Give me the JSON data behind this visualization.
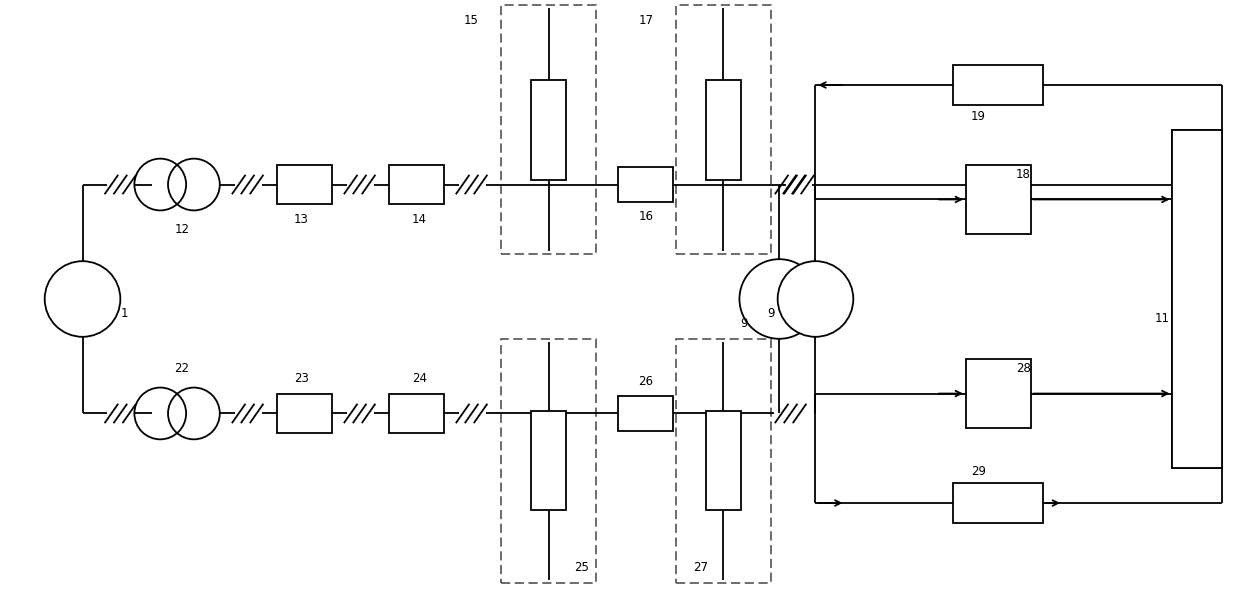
{
  "bg_color": "#ffffff",
  "line_color": "#000000",
  "box_color": "#ffffff",
  "fig_width": 12.4,
  "fig_height": 5.94,
  "dpi": 100
}
